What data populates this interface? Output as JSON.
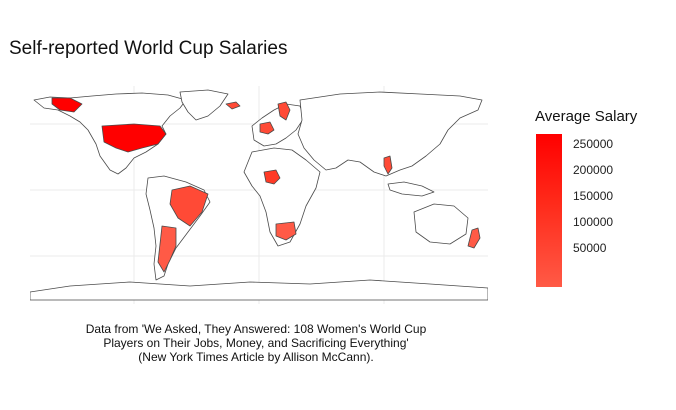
{
  "title": "Self-reported World Cup Salaries",
  "legend": {
    "title": "Average Salary",
    "labels": [
      "250000",
      "200000",
      "150000",
      "100000",
      "50000"
    ],
    "low_color": "#ff5a46",
    "high_color": "#ff0000"
  },
  "caption": {
    "line1": "Data from 'We Asked, They Answered: 108 Women's World Cup",
    "line2": "Players on Their Jobs, Money, and Sacrificing Everything'",
    "line3": "(New York Times Article by Allison McCann)."
  },
  "colors": {
    "background": "#ffffff",
    "grid": "#ebebeb",
    "border": "#4a4a4a",
    "land": "#ffffff"
  },
  "chart_data": {
    "type": "choropleth",
    "title": "Self-reported World Cup Salaries",
    "legend_title": "Average Salary",
    "scale_range": [
      0,
      270000
    ],
    "highlighted_countries": [
      {
        "name": "United States",
        "color": "#ff0000"
      },
      {
        "name": "Iceland",
        "color": "#ff4a36"
      },
      {
        "name": "Sweden",
        "color": "#ff4a36"
      },
      {
        "name": "Germany",
        "color": "#ff4a36"
      },
      {
        "name": "Nigeria",
        "color": "#ff3a26"
      },
      {
        "name": "Brazil",
        "color": "#ff4a36"
      },
      {
        "name": "Argentina",
        "color": "#ff5a46"
      },
      {
        "name": "South Africa",
        "color": "#ff5a46"
      },
      {
        "name": "Thailand",
        "color": "#ff4a36"
      },
      {
        "name": "New Zealand",
        "color": "#ff5a46"
      }
    ]
  }
}
